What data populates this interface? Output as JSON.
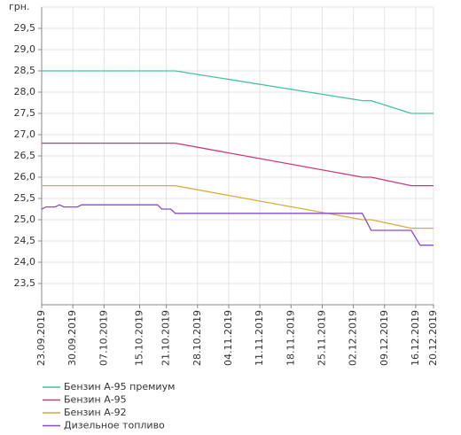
{
  "chart_data": {
    "type": "line",
    "y_unit": "грн.",
    "x": [
      "23.09.2019",
      "24.09.2019",
      "26.09.2019",
      "27.09.2019",
      "28.09.2019",
      "01.10.2019",
      "02.10.2019",
      "19.10.2019",
      "20.10.2019",
      "22.10.2019",
      "23.10.2019",
      "04.12.2019",
      "06.12.2019",
      "15.12.2019",
      "17.12.2019",
      "20.12.2019"
    ],
    "series": [
      {
        "name": "Бензин А-95 премиум",
        "color": "#45c0a2",
        "values": [
          28.5,
          28.5,
          28.5,
          28.5,
          28.5,
          28.5,
          28.5,
          28.5,
          28.5,
          28.5,
          28.5,
          27.8,
          27.8,
          27.5,
          27.5,
          27.5
        ]
      },
      {
        "name": "Бензин А-95",
        "color": "#c8387f",
        "values": [
          26.8,
          26.8,
          26.8,
          26.8,
          26.8,
          26.8,
          26.8,
          26.8,
          26.8,
          26.8,
          26.8,
          26.0,
          26.0,
          25.8,
          25.8,
          25.8
        ]
      },
      {
        "name": "Бензин А-92",
        "color": "#d6ac3e",
        "values": [
          25.8,
          25.8,
          25.8,
          25.8,
          25.8,
          25.8,
          25.8,
          25.8,
          25.8,
          25.8,
          25.8,
          25.0,
          25.0,
          24.8,
          24.8,
          24.8
        ]
      },
      {
        "name": "Дизельное топливо",
        "color": "#8a4cc4",
        "values": [
          25.25,
          25.3,
          25.3,
          25.35,
          25.3,
          25.3,
          25.35,
          25.35,
          25.25,
          25.25,
          25.15,
          25.15,
          24.75,
          24.75,
          24.4,
          24.4
        ]
      }
    ],
    "xlim": [
      "23.09.2019",
      "20.12.2019"
    ],
    "xticks": [
      "23.09.2019",
      "30.09.2019",
      "07.10.2019",
      "15.10.2019",
      "21.10.2019",
      "28.10.2019",
      "04.11.2019",
      "11.11.2019",
      "18.11.2019",
      "25.11.2019",
      "02.12.2019",
      "09.12.2019",
      "16.12.2019",
      "20.12.2019"
    ],
    "ylim": [
      23,
      30
    ],
    "yticks": [
      {
        "value": 23.5,
        "label": "23,5"
      },
      {
        "value": 24,
        "label": "24,0"
      },
      {
        "value": 24.5,
        "label": "24,5"
      },
      {
        "value": 25,
        "label": "25,0"
      },
      {
        "value": 25.5,
        "label": "25,5"
      },
      {
        "value": 26,
        "label": "26,0"
      },
      {
        "value": 26.5,
        "label": "26,5"
      },
      {
        "value": 27,
        "label": "27,0"
      },
      {
        "value": 27.5,
        "label": "27,5"
      },
      {
        "value": 28,
        "label": "28,0"
      },
      {
        "value": 28.5,
        "label": "28,5"
      },
      {
        "value": 29,
        "label": "29,0"
      },
      {
        "value": 29.5,
        "label": "29,5"
      }
    ],
    "grid": true,
    "legend": "bottom-left"
  }
}
